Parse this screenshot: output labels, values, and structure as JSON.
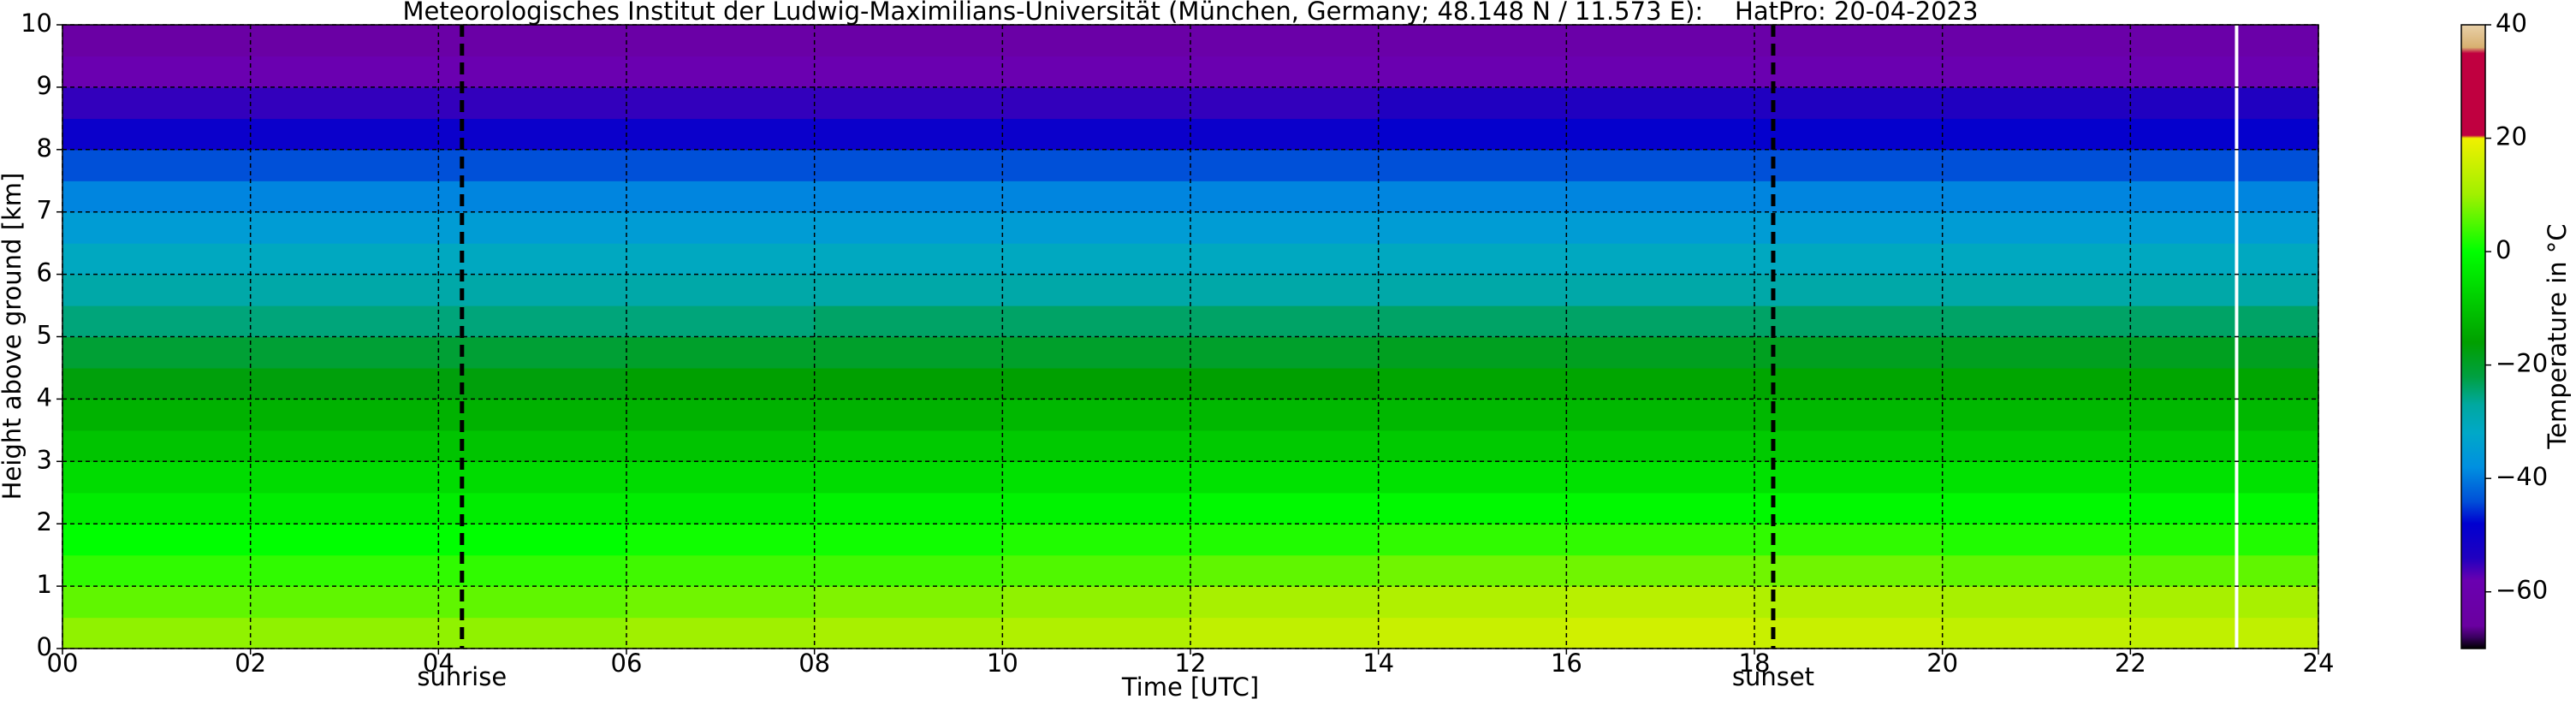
{
  "chart_data": {
    "type": "heatmap",
    "title": "Meteorologisches Institut der Ludwig-Maximilians-Universität (München, Germany; 48.148 N / 11.573 E):    HatPro: 20-04-2023",
    "xlabel": "Time [UTC]",
    "ylabel": "Height above ground [km]",
    "colorbar_label": "Temperature in °C",
    "x": [
      1,
      3,
      5,
      7,
      9,
      11,
      13,
      15,
      17,
      19,
      21,
      23
    ],
    "y": [
      0.25,
      0.75,
      1.25,
      1.75,
      2.25,
      2.75,
      3.25,
      3.75,
      4.25,
      4.75,
      5.25,
      5.75,
      6.25,
      6.75,
      7.25,
      7.75,
      8.25,
      8.75,
      9.25,
      9.75
    ],
    "z": [
      [
        9,
        9,
        9,
        10,
        11,
        12,
        14,
        15,
        16,
        15,
        14,
        14
      ],
      [
        6,
        6,
        6,
        7,
        8,
        9,
        11,
        12,
        13,
        12,
        11,
        11
      ],
      [
        3,
        3,
        3,
        4,
        4,
        5,
        6,
        7,
        7,
        7,
        6,
        6
      ],
      [
        0,
        0,
        0,
        1,
        1,
        2,
        2,
        3,
        3,
        3,
        2,
        2
      ],
      [
        -3,
        -3,
        -3,
        -3,
        -2,
        -2,
        -1,
        -1,
        -1,
        -1,
        -1,
        -1
      ],
      [
        -6,
        -6,
        -6,
        -6,
        -6,
        -5,
        -5,
        -5,
        -5,
        -5,
        -5,
        -5
      ],
      [
        -10,
        -10,
        -10,
        -10,
        -9,
        -9,
        -9,
        -9,
        -9,
        -9,
        -9,
        -9
      ],
      [
        -13,
        -13,
        -13,
        -13,
        -13,
        -12,
        -12,
        -12,
        -12,
        -12,
        -12,
        -12
      ],
      [
        -17,
        -17,
        -17,
        -16,
        -16,
        -16,
        -16,
        -15,
        -15,
        -15,
        -15,
        -15
      ],
      [
        -21,
        -21,
        -21,
        -20,
        -20,
        -20,
        -20,
        -19,
        -19,
        -19,
        -19,
        -19
      ],
      [
        -25,
        -25,
        -25,
        -25,
        -24,
        -24,
        -24,
        -24,
        -24,
        -24,
        -24,
        -24
      ],
      [
        -28,
        -28,
        -28,
        -28,
        -28,
        -28,
        -28,
        -28,
        -28,
        -28,
        -28,
        -28
      ],
      [
        -31,
        -31,
        -31,
        -31,
        -31,
        -31,
        -31,
        -31,
        -31,
        -31,
        -31,
        -31
      ],
      [
        -35,
        -35,
        -35,
        -35,
        -35,
        -35,
        -35,
        -35,
        -35,
        -35,
        -35,
        -35
      ],
      [
        -39,
        -39,
        -39,
        -39,
        -39,
        -39,
        -39,
        -39,
        -39,
        -39,
        -39,
        -39
      ],
      [
        -44,
        -44,
        -44,
        -44,
        -44,
        -44,
        -44,
        -44,
        -44,
        -44,
        -44,
        -44
      ],
      [
        -50,
        -50,
        -50,
        -50,
        -50,
        -50,
        -50,
        -49,
        -49,
        -49,
        -49,
        -49
      ],
      [
        -55,
        -55,
        -55,
        -55,
        -55,
        -55,
        -55,
        -54,
        -54,
        -54,
        -54,
        -54
      ],
      [
        -58,
        -58,
        -58,
        -58,
        -58,
        -58,
        -58,
        -58,
        -58,
        -58,
        -58,
        -58
      ],
      [
        -64,
        -64,
        -63,
        -63,
        -63,
        -63,
        -62,
        -62,
        -62,
        -62,
        -62,
        -62
      ]
    ],
    "xlim": [
      0,
      24
    ],
    "xticks": [
      {
        "value": 0,
        "label": "00"
      },
      {
        "value": 2,
        "label": "02"
      },
      {
        "value": 4,
        "label": "04"
      },
      {
        "value": 6,
        "label": "06"
      },
      {
        "value": 8,
        "label": "08"
      },
      {
        "value": 10,
        "label": "10"
      },
      {
        "value": 12,
        "label": "12"
      },
      {
        "value": 14,
        "label": "14"
      },
      {
        "value": 16,
        "label": "16"
      },
      {
        "value": 18,
        "label": "18"
      },
      {
        "value": 20,
        "label": "20"
      },
      {
        "value": 22,
        "label": "22"
      },
      {
        "value": 24,
        "label": "24"
      }
    ],
    "ylim": [
      0,
      10
    ],
    "yticks": [
      0,
      1,
      2,
      3,
      4,
      5,
      6,
      7,
      8,
      9,
      10
    ],
    "clim": [
      -70,
      40
    ],
    "cticks": [
      {
        "value": -60,
        "label": "−60"
      },
      {
        "value": -40,
        "label": "−40"
      },
      {
        "value": -20,
        "label": "−20"
      },
      0,
      20,
      40
    ],
    "colorscale": [
      [
        -70,
        "#000000"
      ],
      [
        -68,
        "#3a0060"
      ],
      [
        -66,
        "#6a00a0"
      ],
      [
        -58,
        "#6a00b0"
      ],
      [
        -54,
        "#2000c0"
      ],
      [
        -48,
        "#0000d0"
      ],
      [
        -44,
        "#0050d8"
      ],
      [
        -38,
        "#0090e0"
      ],
      [
        -32,
        "#00a8c8"
      ],
      [
        -27,
        "#00a8a0"
      ],
      [
        -22,
        "#00a040"
      ],
      [
        -16,
        "#00a000"
      ],
      [
        -8,
        "#00d000"
      ],
      [
        0,
        "#00ff00"
      ],
      [
        10,
        "#a0f000"
      ],
      [
        20,
        "#f0f000"
      ],
      [
        20.5,
        "#c00040"
      ],
      [
        35,
        "#c00040"
      ],
      [
        36,
        "#d8b070"
      ],
      [
        40,
        "#e8d0a8"
      ]
    ],
    "grid": true,
    "annotations": [
      {
        "x": 4.25,
        "label": "sunrise"
      },
      {
        "x": 18.2,
        "label": "sunset"
      }
    ],
    "gap_x": 23.13
  }
}
